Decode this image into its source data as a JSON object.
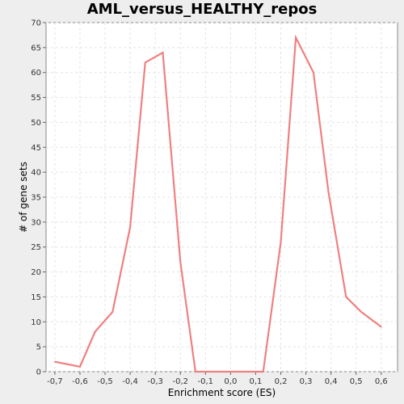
{
  "chart_data": {
    "type": "line",
    "title": "AML_versus_HEALTHY_repos",
    "xlabel": "Enrichment score (ES)",
    "ylabel": "# of gene sets",
    "xlim": [
      -0.735,
      0.665
    ],
    "ylim": [
      0,
      70
    ],
    "xticks": [
      -0.7,
      -0.6,
      -0.5,
      -0.4,
      -0.3,
      -0.2,
      -0.1,
      0.0,
      0.1,
      0.2,
      0.3,
      0.4,
      0.5,
      0.6
    ],
    "xtick_labels": [
      "-0,7",
      "-0,6",
      "-0,5",
      "-0,4",
      "-0,3",
      "-0,2",
      "-0,1",
      "0,0",
      "0,1",
      "0,2",
      "0,3",
      "0,4",
      "0,5",
      "0,6"
    ],
    "yticks": [
      0,
      5,
      10,
      15,
      20,
      25,
      30,
      35,
      40,
      45,
      50,
      55,
      60,
      65,
      70
    ],
    "ytick_labels": [
      "0",
      "5",
      "10",
      "15",
      "20",
      "25",
      "30",
      "35",
      "40",
      "45",
      "50",
      "55",
      "60",
      "65",
      "70"
    ],
    "grid": true,
    "series": [
      {
        "color": "#f08080",
        "x": [
          -0.7,
          -0.6,
          -0.54,
          -0.47,
          -0.4,
          -0.34,
          -0.27,
          -0.2,
          -0.14,
          0.0,
          0.13,
          0.2,
          0.26,
          0.33,
          0.39,
          0.46,
          0.52,
          0.6
        ],
        "y": [
          2,
          1,
          8,
          12,
          29,
          62,
          64,
          22,
          0,
          0,
          0,
          26,
          67,
          60,
          36,
          15,
          12,
          9
        ]
      }
    ]
  }
}
